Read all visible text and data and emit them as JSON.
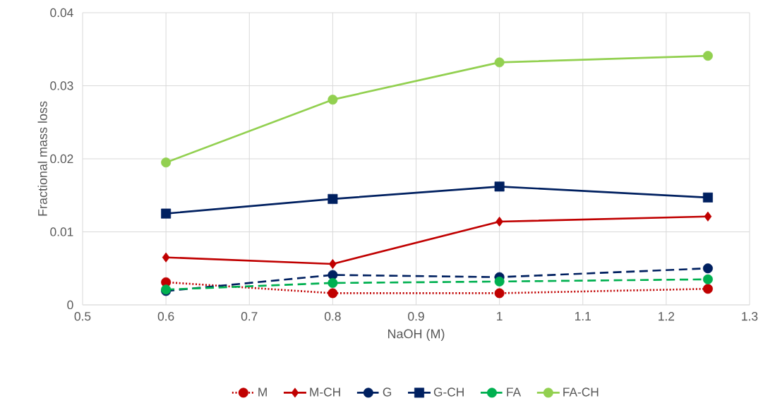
{
  "chart_data": {
    "type": "line",
    "xlabel": "NaOH (M)",
    "ylabel": "Fractional mass loss",
    "x": [
      0.6,
      0.8,
      1,
      1.25
    ],
    "xlim": [
      0.5,
      1.3
    ],
    "xticks": [
      0.5,
      0.6,
      0.7,
      0.8,
      0.9,
      1,
      1.1,
      1.2,
      1.3
    ],
    "ylim": [
      0,
      0.04
    ],
    "yticks": [
      0,
      0.01,
      0.02,
      0.03,
      0.04
    ],
    "grid": true,
    "legend": "bottom",
    "series": [
      {
        "name": "M",
        "color": "#c00000",
        "marker": "circle",
        "line_style": "dotted",
        "values": [
          0.0031,
          0.0016,
          0.0016,
          0.0022
        ]
      },
      {
        "name": "M-CH",
        "color": "#c00000",
        "marker": "diamond",
        "line_style": "solid",
        "values": [
          0.0065,
          0.0056,
          0.0114,
          0.0121
        ]
      },
      {
        "name": "G",
        "color": "#002060",
        "marker": "circle",
        "line_style": "dashed",
        "values": [
          0.0019,
          0.0041,
          0.0038,
          0.005
        ]
      },
      {
        "name": "G-CH",
        "color": "#002060",
        "marker": "square",
        "line_style": "solid",
        "values": [
          0.0125,
          0.0145,
          0.0162,
          0.0147
        ]
      },
      {
        "name": "FA",
        "color": "#00b050",
        "marker": "circle",
        "line_style": "dashed",
        "values": [
          0.0021,
          0.003,
          0.0032,
          0.0035
        ]
      },
      {
        "name": "FA-CH",
        "color": "#92d050",
        "marker": "circle",
        "line_style": "solid",
        "values": [
          0.0195,
          0.0281,
          0.0332,
          0.0341
        ]
      }
    ]
  }
}
